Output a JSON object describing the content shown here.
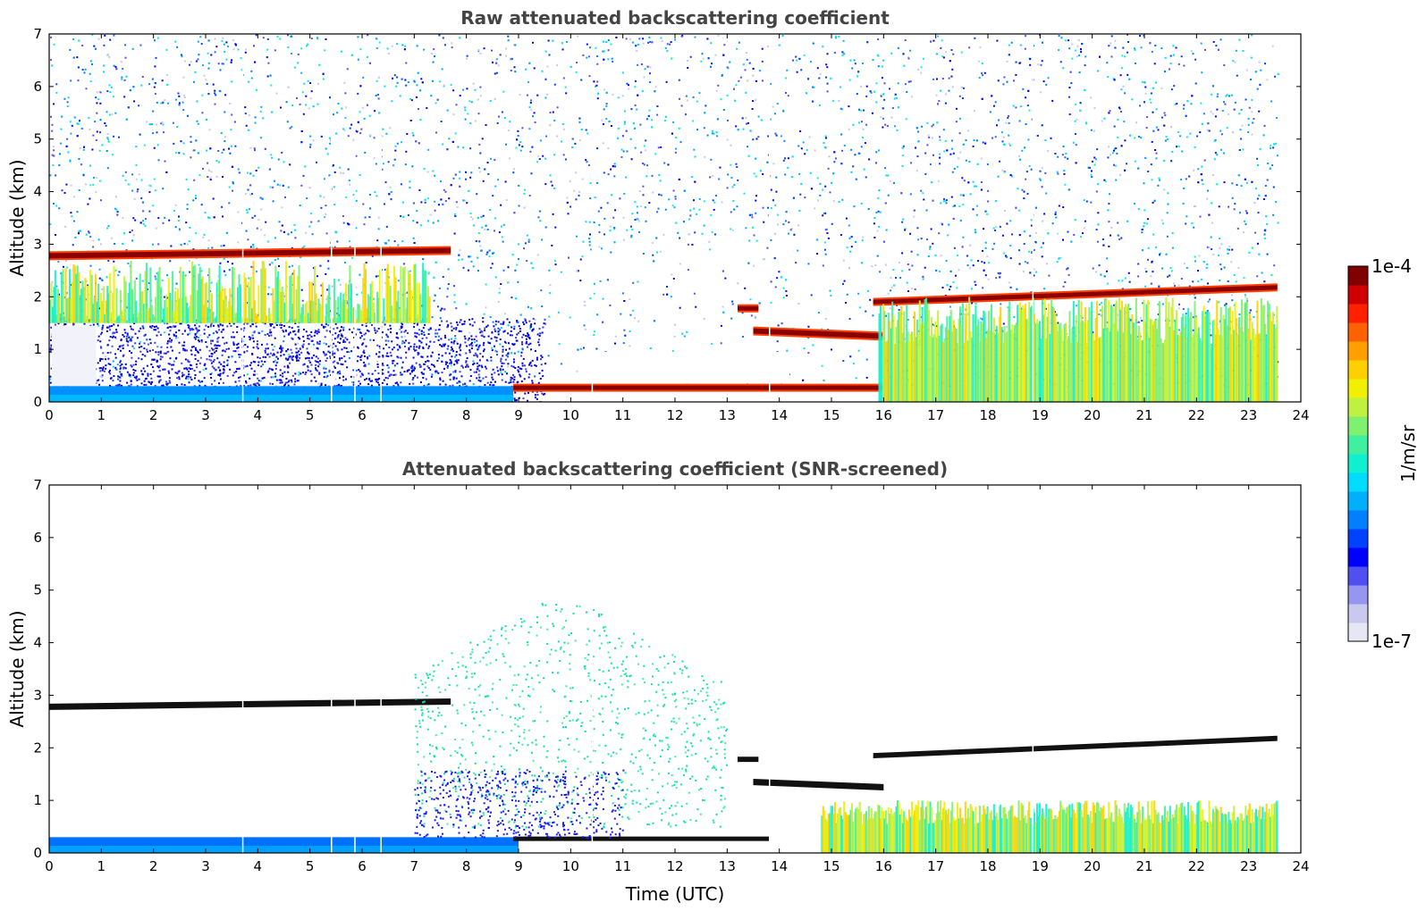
{
  "chart_data": [
    {
      "type": "heatmap",
      "title": "Raw attenuated backscattering coefficient",
      "xlabel": "",
      "ylabel": "Altitude (km)",
      "xlim": [
        0,
        24
      ],
      "ylim": [
        0,
        7
      ],
      "xticks": [
        "0",
        "1",
        "2",
        "3",
        "4",
        "5",
        "6",
        "7",
        "8",
        "9",
        "10",
        "11",
        "12",
        "13",
        "14",
        "15",
        "16",
        "17",
        "18",
        "19",
        "20",
        "21",
        "22",
        "23",
        "24"
      ],
      "yticks": [
        "0",
        "1",
        "2",
        "3",
        "4",
        "5",
        "6",
        "7"
      ],
      "data_end_hour": 23.55,
      "noise_level": "high",
      "features": [
        {
          "kind": "cloud_layer",
          "name": "Altocumulus top layer",
          "t_start": 0.0,
          "t_end": 7.7,
          "alt_start": 2.78,
          "alt_end": 2.88,
          "thickness": 0.1
        },
        {
          "kind": "aerosol",
          "name": "Virga below layer",
          "t_start": 0.0,
          "t_end": 7.3,
          "alt_top": 2.7,
          "alt_bottom": 1.5
        },
        {
          "kind": "surface_layer",
          "name": "Near-surface aerosol",
          "t_start": 0.0,
          "t_end": 8.9,
          "alt_top": 0.3
        },
        {
          "kind": "cloud_layer",
          "name": "Low cloud",
          "t_start": 8.9,
          "t_end": 16.0,
          "alt_start": 0.27,
          "alt_end": 0.27,
          "thickness": 0.06
        },
        {
          "kind": "cloud_layer",
          "name": "Broken cloud 1",
          "t_start": 13.2,
          "t_end": 13.6,
          "alt_start": 1.78,
          "alt_end": 1.78,
          "thickness": 0.08
        },
        {
          "kind": "cloud_layer",
          "name": "Broken cloud 2",
          "t_start": 13.5,
          "t_end": 16.0,
          "alt_start": 1.35,
          "alt_end": 1.25,
          "thickness": 0.1
        },
        {
          "kind": "cloud_layer",
          "name": "Stratocumulus top",
          "t_start": 15.8,
          "t_end": 23.55,
          "alt_start": 1.9,
          "alt_end": 2.18,
          "thickness": 0.08
        },
        {
          "kind": "aerosol",
          "name": "Boundary layer aerosol",
          "t_start": 15.9,
          "t_end": 23.55,
          "alt_top": 2.0,
          "alt_bottom": 0.0
        }
      ]
    },
    {
      "type": "heatmap",
      "title": "Attenuated backscattering coefficient (SNR-screened)",
      "xlabel": "Time (UTC)",
      "ylabel": "Altitude (km)",
      "xlim": [
        0,
        24
      ],
      "ylim": [
        0,
        7
      ],
      "xticks": [
        "0",
        "1",
        "2",
        "3",
        "4",
        "5",
        "6",
        "7",
        "8",
        "9",
        "10",
        "11",
        "12",
        "13",
        "14",
        "15",
        "16",
        "17",
        "18",
        "19",
        "20",
        "21",
        "22",
        "23",
        "24"
      ],
      "yticks": [
        "0",
        "1",
        "2",
        "3",
        "4",
        "5",
        "6",
        "7"
      ],
      "data_end_hour": 23.55,
      "noise_level": "screened",
      "features": [
        {
          "kind": "cloud_layer_black",
          "name": "Altocumulus top layer",
          "t_start": 0.0,
          "t_end": 7.7,
          "alt_start": 2.78,
          "alt_end": 2.88,
          "thickness": 0.12
        },
        {
          "kind": "surface_layer",
          "name": "Near-surface aerosol",
          "t_start": 0.0,
          "t_end": 9.0,
          "alt_top": 0.3
        },
        {
          "kind": "cloud_layer_black",
          "name": "Low cloud",
          "t_start": 8.9,
          "t_end": 13.8,
          "alt_start": 0.27,
          "alt_end": 0.27,
          "thickness": 0.06
        },
        {
          "kind": "cloud_layer_black",
          "name": "Broken cloud 1",
          "t_start": 13.2,
          "t_end": 13.6,
          "alt_start": 1.78,
          "alt_end": 1.78,
          "thickness": 0.1
        },
        {
          "kind": "cloud_layer_black",
          "name": "Broken cloud 2",
          "t_start": 13.5,
          "t_end": 16.0,
          "alt_start": 1.35,
          "alt_end": 1.25,
          "thickness": 0.12
        },
        {
          "kind": "cloud_layer_black",
          "name": "Stratocumulus top",
          "t_start": 15.8,
          "t_end": 23.55,
          "alt_start": 1.85,
          "alt_end": 2.18,
          "thickness": 0.1
        },
        {
          "kind": "aerosol",
          "name": "Boundary layer aerosol",
          "t_start": 14.8,
          "t_end": 23.55,
          "alt_top": 1.0,
          "alt_bottom": 0.0
        },
        {
          "kind": "scatter",
          "name": "Screened scattered returns",
          "t_start": 7.0,
          "t_end": 13.0,
          "alt_top": 5.0,
          "alt_bottom": 0.5
        }
      ]
    }
  ],
  "colorbar": {
    "label": "1/m/sr",
    "max_label": "1e-4",
    "min_label": "1e-7",
    "colors": [
      "#e6e6f5",
      "#c8c8f0",
      "#9696f0",
      "#5050f0",
      "#0000ff",
      "#0040ff",
      "#0080ff",
      "#00b0ff",
      "#00dcff",
      "#10f0d0",
      "#40f0a0",
      "#80f070",
      "#c0f040",
      "#f0f000",
      "#ffd000",
      "#ffa000",
      "#ff6000",
      "#ff2000",
      "#d00000",
      "#800000"
    ]
  }
}
